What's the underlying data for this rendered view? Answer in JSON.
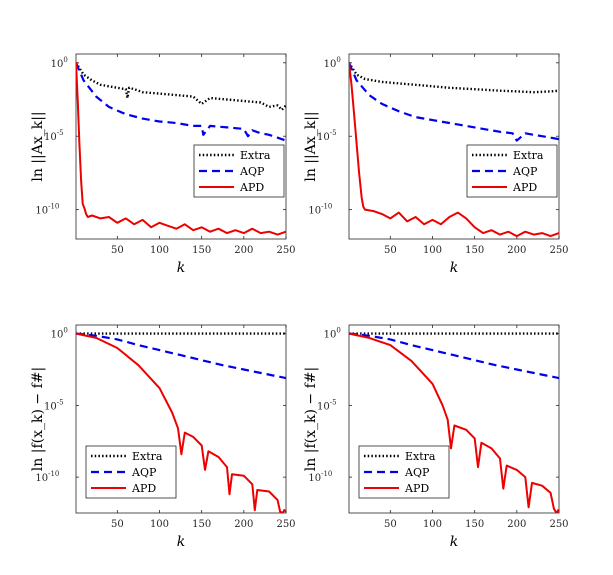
{
  "chart_data": [
    {
      "type": "line",
      "id": "top-left",
      "xlabel": "k",
      "ylabel": "ln ||Ax_k||",
      "xlim": [
        1,
        250
      ],
      "ylim_exp": [
        -12,
        0.6
      ],
      "x_ticks": [
        50,
        100,
        150,
        200,
        250
      ],
      "y_ticks": [
        {
          "base": "10",
          "exp": "0",
          "value_exp": 0
        },
        {
          "base": "10",
          "exp": "-5",
          "value_exp": -5
        },
        {
          "base": "10",
          "exp": "-10",
          "value_exp": -10
        }
      ],
      "legend": [
        "Extra",
        "AQP",
        "APD"
      ],
      "legend_position": "lower-right",
      "series": [
        {
          "name": "Extra",
          "style": "dotted",
          "color": "#000000",
          "x": [
            1,
            10,
            20,
            30,
            40,
            50,
            60,
            62,
            64,
            70,
            80,
            100,
            120,
            140,
            150,
            160,
            180,
            200,
            220,
            230,
            240,
            245,
            250
          ],
          "log10_y": [
            0,
            -0.8,
            -1.2,
            -1.5,
            -1.6,
            -1.7,
            -1.8,
            -2.4,
            -1.7,
            -1.8,
            -2.0,
            -2.1,
            -2.2,
            -2.3,
            -2.8,
            -2.4,
            -2.5,
            -2.6,
            -2.7,
            -3.0,
            -2.9,
            -3.2,
            -2.9
          ]
        },
        {
          "name": "AQP",
          "style": "dashed",
          "color": "#0000ee",
          "x": [
            1,
            10,
            25,
            40,
            60,
            80,
            100,
            120,
            130,
            140,
            150,
            152,
            160,
            180,
            200,
            205,
            210,
            220,
            230,
            240,
            250
          ],
          "log10_y": [
            0,
            -1.2,
            -2.3,
            -3.0,
            -3.5,
            -3.8,
            -4.0,
            -4.1,
            -4.2,
            -4.3,
            -4.3,
            -4.9,
            -4.3,
            -4.4,
            -4.5,
            -5.0,
            -4.6,
            -4.8,
            -4.9,
            -5.1,
            -5.3
          ]
        },
        {
          "name": "APD",
          "style": "solid",
          "color": "#ee0000",
          "x": [
            1,
            3,
            5,
            7,
            9,
            11,
            13,
            15,
            20,
            30,
            40,
            50,
            60,
            70,
            80,
            90,
            100,
            110,
            120,
            130,
            140,
            150,
            160,
            170,
            180,
            190,
            200,
            210,
            220,
            230,
            240,
            250
          ],
          "log10_y": [
            0,
            -2.5,
            -5.5,
            -8.0,
            -9.6,
            -9.9,
            -10.3,
            -10.5,
            -10.4,
            -10.6,
            -10.5,
            -10.9,
            -10.6,
            -11.0,
            -10.7,
            -11.2,
            -10.9,
            -11.1,
            -11.3,
            -11.0,
            -11.4,
            -11.2,
            -11.5,
            -11.3,
            -11.6,
            -11.4,
            -11.6,
            -11.3,
            -11.6,
            -11.5,
            -11.7,
            -11.5
          ]
        }
      ]
    },
    {
      "type": "line",
      "id": "top-right",
      "xlabel": "k",
      "ylabel": "ln ||Ax_k||",
      "xlim": [
        1,
        250
      ],
      "ylim_exp": [
        -12,
        0.6
      ],
      "x_ticks": [
        50,
        100,
        150,
        200,
        250
      ],
      "y_ticks": [
        {
          "base": "10",
          "exp": "0",
          "value_exp": 0
        },
        {
          "base": "10",
          "exp": "-5",
          "value_exp": -5
        },
        {
          "base": "10",
          "exp": "-10",
          "value_exp": -10
        }
      ],
      "legend": [
        "Extra",
        "AQP",
        "APD"
      ],
      "legend_position": "lower-right",
      "series": [
        {
          "name": "Extra",
          "style": "dotted",
          "color": "#000000",
          "x": [
            1,
            10,
            20,
            40,
            60,
            80,
            100,
            120,
            150,
            180,
            200,
            220,
            240,
            250
          ],
          "log10_y": [
            0,
            -0.8,
            -1.1,
            -1.3,
            -1.4,
            -1.5,
            -1.6,
            -1.7,
            -1.8,
            -1.9,
            -1.95,
            -2.0,
            -1.95,
            -1.9
          ]
        },
        {
          "name": "AQP",
          "style": "dashed",
          "color": "#0000ee",
          "x": [
            1,
            10,
            25,
            40,
            60,
            80,
            100,
            120,
            140,
            160,
            180,
            195,
            200,
            210,
            220,
            230,
            240,
            250
          ],
          "log10_y": [
            0,
            -1.2,
            -2.2,
            -2.8,
            -3.3,
            -3.7,
            -3.9,
            -4.1,
            -4.3,
            -4.5,
            -4.7,
            -4.8,
            -5.3,
            -4.8,
            -4.9,
            -5.0,
            -5.1,
            -5.2
          ]
        },
        {
          "name": "APD",
          "style": "solid",
          "color": "#ee0000",
          "x": [
            1,
            4,
            7,
            10,
            13,
            16,
            18,
            20,
            30,
            40,
            50,
            60,
            70,
            80,
            90,
            100,
            110,
            120,
            130,
            140,
            150,
            160,
            170,
            180,
            190,
            200,
            210,
            220,
            230,
            240,
            250
          ],
          "log10_y": [
            0,
            -1.5,
            -3.5,
            -5.5,
            -7.5,
            -9.2,
            -9.8,
            -10.0,
            -10.1,
            -10.3,
            -10.6,
            -10.2,
            -10.8,
            -10.5,
            -11.0,
            -10.7,
            -11.0,
            -10.5,
            -10.2,
            -10.6,
            -11.2,
            -11.6,
            -11.4,
            -11.7,
            -11.5,
            -11.8,
            -11.5,
            -11.7,
            -11.6,
            -11.8,
            -11.6
          ]
        }
      ]
    },
    {
      "type": "line",
      "id": "bottom-left",
      "xlabel": "k",
      "ylabel": "ln |f(x_k) − f#|",
      "xlim": [
        1,
        250
      ],
      "ylim_exp": [
        -12.5,
        0.6
      ],
      "x_ticks": [
        50,
        100,
        150,
        200,
        250
      ],
      "y_ticks": [
        {
          "base": "10",
          "exp": "0",
          "value_exp": 0
        },
        {
          "base": "10",
          "exp": "-5",
          "value_exp": -5
        },
        {
          "base": "10",
          "exp": "-10",
          "value_exp": -10
        }
      ],
      "legend": [
        "Extra",
        "AQP",
        "APD"
      ],
      "legend_position": "lower-left",
      "series": [
        {
          "name": "Extra",
          "style": "dotted",
          "color": "#000000",
          "x": [
            1,
            250
          ],
          "log10_y": [
            0,
            0
          ]
        },
        {
          "name": "AQP",
          "style": "dashed",
          "color": "#0000ee",
          "x": [
            1,
            25,
            50,
            75,
            100,
            125,
            150,
            175,
            200,
            225,
            250
          ],
          "log10_y": [
            0,
            -0.15,
            -0.4,
            -0.8,
            -1.15,
            -1.5,
            -1.85,
            -2.2,
            -2.5,
            -2.8,
            -3.1
          ]
        },
        {
          "name": "APD",
          "style": "solid",
          "color": "#ee0000",
          "x": [
            1,
            25,
            50,
            75,
            100,
            115,
            122,
            126,
            130,
            140,
            150,
            154,
            158,
            170,
            180,
            183,
            186,
            200,
            210,
            213,
            216,
            230,
            240,
            243,
            246,
            248,
            250
          ],
          "log10_y": [
            0,
            -0.3,
            -1.0,
            -2.2,
            -3.8,
            -5.5,
            -6.6,
            -8.4,
            -6.9,
            -7.2,
            -7.8,
            -9.5,
            -8.2,
            -8.6,
            -9.3,
            -11.2,
            -9.8,
            -9.9,
            -10.5,
            -12.3,
            -10.9,
            -11.0,
            -11.6,
            -12.4,
            -12.5,
            -12.3,
            -12.4
          ]
        }
      ]
    },
    {
      "type": "line",
      "id": "bottom-right",
      "xlabel": "k",
      "ylabel": "ln |f(x_k) − f#|",
      "xlim": [
        1,
        250
      ],
      "ylim_exp": [
        -12.5,
        0.6
      ],
      "x_ticks": [
        50,
        100,
        150,
        200,
        250
      ],
      "y_ticks": [
        {
          "base": "10",
          "exp": "0",
          "value_exp": 0
        },
        {
          "base": "10",
          "exp": "-5",
          "value_exp": -5
        },
        {
          "base": "10",
          "exp": "-10",
          "value_exp": -10
        }
      ],
      "legend": [
        "Extra",
        "AQP",
        "APD"
      ],
      "legend_position": "lower-left",
      "series": [
        {
          "name": "Extra",
          "style": "dotted",
          "color": "#000000",
          "x": [
            1,
            250
          ],
          "log10_y": [
            0,
            0
          ]
        },
        {
          "name": "AQP",
          "style": "dashed",
          "color": "#0000ee",
          "x": [
            1,
            25,
            50,
            75,
            100,
            125,
            150,
            175,
            200,
            225,
            250
          ],
          "log10_y": [
            0,
            -0.15,
            -0.4,
            -0.8,
            -1.15,
            -1.5,
            -1.85,
            -2.2,
            -2.5,
            -2.8,
            -3.1
          ]
        },
        {
          "name": "APD",
          "style": "solid",
          "color": "#ee0000",
          "x": [
            1,
            25,
            50,
            75,
            100,
            112,
            118,
            122,
            126,
            140,
            150,
            154,
            158,
            170,
            180,
            184,
            188,
            200,
            210,
            214,
            218,
            230,
            240,
            244,
            247,
            249,
            250
          ],
          "log10_y": [
            0,
            -0.3,
            -0.8,
            -1.9,
            -3.5,
            -5.0,
            -6.0,
            -8.0,
            -6.4,
            -6.7,
            -7.3,
            -9.3,
            -7.6,
            -8.0,
            -8.7,
            -10.8,
            -9.2,
            -9.5,
            -10.0,
            -12.1,
            -10.4,
            -10.6,
            -11.1,
            -12.2,
            -12.5,
            -12.3,
            -12.4
          ]
        }
      ]
    }
  ]
}
